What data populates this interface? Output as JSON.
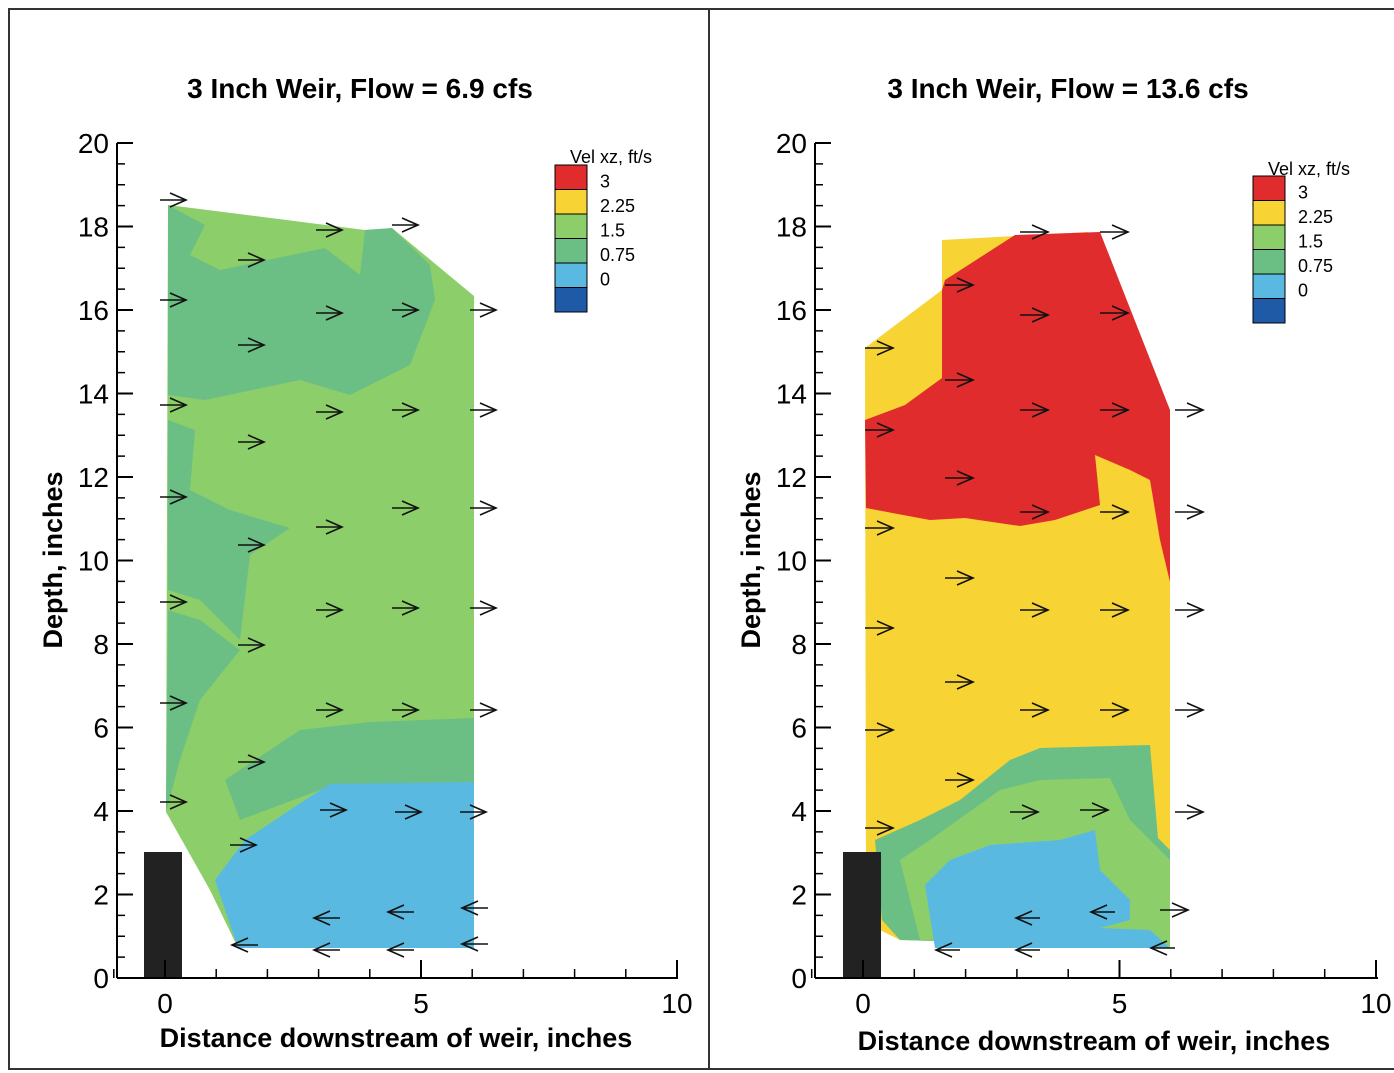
{
  "chart_data": [
    {
      "type": "contour",
      "title": "3 Inch Weir, Flow = 6.9 cfs",
      "xlabel": "Distance downstream of weir, inches",
      "ylabel": "Depth, inches",
      "xlim": [
        -1,
        10
      ],
      "ylim": [
        0,
        20
      ],
      "x_ticks": [
        "0",
        "5",
        "10"
      ],
      "y_ticks": [
        "0",
        "2",
        "4",
        "6",
        "8",
        "10",
        "12",
        "14",
        "16",
        "18",
        "20"
      ],
      "legend": {
        "title": "Vel xz,  ft/s",
        "levels": [
          "3",
          "2.25",
          "1.5",
          "0.75",
          "0"
        ],
        "colors": [
          "#e02c2c",
          "#f7d334",
          "#8ccf6a",
          "#6cbf84",
          "#5ab9e0",
          "#1f5aa6"
        ]
      },
      "grid": false
    },
    {
      "type": "contour",
      "title": "3 Inch Weir, Flow = 13.6 cfs",
      "xlabel": "Distance downstream of weir, inches",
      "ylabel": "Depth, inches",
      "xlim": [
        -1,
        10
      ],
      "ylim": [
        0,
        20
      ],
      "x_ticks": [
        "0",
        "5",
        "10"
      ],
      "y_ticks": [
        "0",
        "2",
        "4",
        "6",
        "8",
        "10",
        "12",
        "14",
        "16",
        "18",
        "20"
      ],
      "legend": {
        "title": "Vel xz,  ft/s",
        "levels": [
          "3",
          "2.25",
          "1.5",
          "0.75",
          "0"
        ],
        "colors": [
          "#e02c2c",
          "#f7d334",
          "#8ccf6a",
          "#6cbf84",
          "#5ab9e0",
          "#1f5aa6"
        ]
      },
      "grid": false
    }
  ]
}
